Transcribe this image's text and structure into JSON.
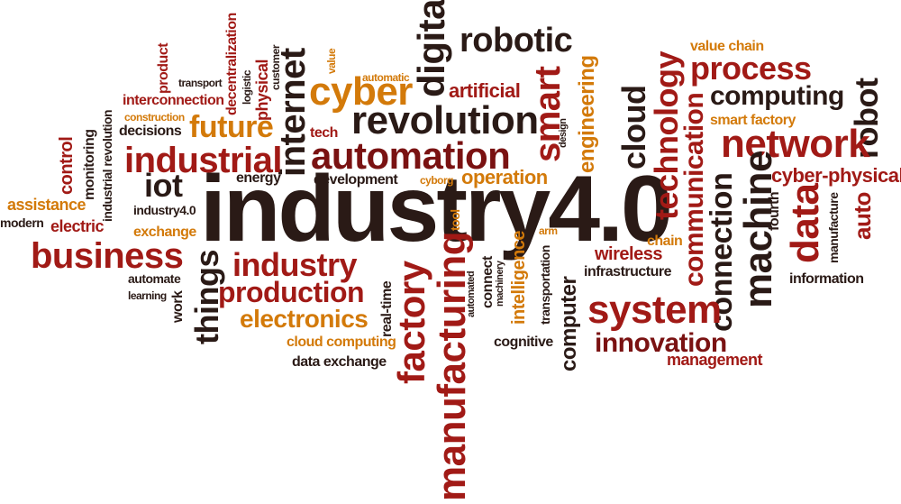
{
  "palette": {
    "dark": "#2a1a16",
    "maroon": "#7a1212",
    "red": "#a11a16",
    "orange": "#d37a0a",
    "brown": "#8a3a12"
  },
  "words": {
    "industry40": "industry4.0",
    "robotic": "robotic",
    "digital": "digital",
    "internet": "internet",
    "cyber": "cyber",
    "revolution": "revolution",
    "automation": "automation",
    "artificial": "artificial",
    "smart": "smart",
    "engineering": "engineering",
    "process": "process",
    "technology": "technology",
    "value_chain": "value chain",
    "computing": "computing",
    "robot": "robot",
    "smart_factory": "smart factory",
    "network": "network",
    "cloud": "cloud",
    "communication": "communication",
    "machine": "machine",
    "cyber_physical": "cyber-physical",
    "connection": "connection",
    "data": "data",
    "auto": "auto",
    "fourth": "fourth",
    "manufacture": "manufacture",
    "information": "information",
    "industrial": "industrial",
    "future": "future",
    "iot": "iot",
    "energy": "energy",
    "development": "development",
    "operation": "operation",
    "business": "business",
    "industry": "industry",
    "production": "production",
    "electronics": "electronics",
    "things": "things",
    "factory": "factory",
    "manufacturing": "manufacturing",
    "intelligence": "intelligence",
    "system": "system",
    "innovation": "innovation",
    "management": "management",
    "wireless": "wireless",
    "infrastructure": "infrastructure",
    "chain": "chain",
    "computer": "computer",
    "cognitive": "cognitive",
    "cloud_computing": "cloud computing",
    "data_exchange": "data exchange",
    "real_time": "real-time",
    "transportation": "transportation",
    "connect": "connect",
    "automated": "automated",
    "machinery": "machinery",
    "tool": "tool",
    "arm": "arm",
    "assistance": "assistance",
    "modern": "modern",
    "electric": "electric",
    "exchange": "exchange",
    "automate": "automate",
    "learning": "learning",
    "work": "work",
    "control": "control",
    "monitoring": "monitoring",
    "industrial_revolution": "industrial revolution",
    "decisions": "decisions",
    "construction": "construction",
    "interconnection": "interconnection",
    "transport": "transport",
    "product": "product",
    "decentralization": "decentralization",
    "physical": "physical",
    "logistic": "logistic",
    "customer": "customer",
    "value": "value",
    "tech": "tech",
    "automatic": "automatic",
    "industry40_small": "industry4.0",
    "cyborg": "cyborg",
    "design": "design"
  }
}
